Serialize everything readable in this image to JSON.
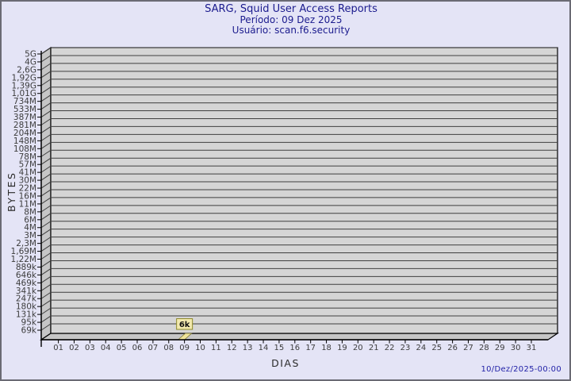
{
  "page": {
    "background": "#e4e4f6",
    "border_color": "#6a6a74"
  },
  "header": {
    "title": "SARG, Squid User Access Reports",
    "period": "Período: 09 Dez 2025",
    "user": "Usuário: scan.f6.security",
    "text_color": "#1b1b8e"
  },
  "chart_data": {
    "type": "bar",
    "title": "SARG, Squid User Access Reports",
    "xlabel": "DIAS",
    "ylabel": "BYTES",
    "categories": [
      "01",
      "02",
      "03",
      "04",
      "05",
      "06",
      "07",
      "08",
      "09",
      "10",
      "11",
      "12",
      "13",
      "14",
      "15",
      "16",
      "17",
      "18",
      "19",
      "20",
      "21",
      "22",
      "23",
      "24",
      "25",
      "26",
      "27",
      "28",
      "29",
      "30",
      "31"
    ],
    "y_tick_labels_top_to_bottom": [
      "5G",
      "4G",
      "2,6G",
      "1,92G",
      "1,39G",
      "1,01G",
      "734M",
      "533M",
      "387M",
      "281M",
      "204M",
      "148M",
      "108M",
      "78M",
      "57M",
      "41M",
      "30M",
      "22M",
      "16M",
      "11M",
      "8M",
      "6M",
      "4M",
      "3M",
      "2,3M",
      "1,69M",
      "1,22M",
      "889k",
      "646k",
      "469k",
      "341k",
      "247k",
      "180k",
      "131k",
      "95k",
      "69k"
    ],
    "y_axis_top": "5G",
    "y_axis_bottom": "69k",
    "grid": true,
    "legend": false,
    "series": [
      {
        "name": "bytes_per_day",
        "points": [
          {
            "x": "09",
            "value_bytes": 6000,
            "label": "6k"
          }
        ]
      }
    ],
    "colors": {
      "plot_bg": "#d5d5d5",
      "wall": "#c6c6c6",
      "grid_line": "#3f3f3f",
      "axis_line": "#000000",
      "tick_label": "#3d3d3d",
      "bar_fill": "#efe49a",
      "bar_border": "#7a7430",
      "annotation_bg": "#f2e9ae",
      "annotation_border": "#8f8a2a",
      "annotation_text": "#111111"
    }
  },
  "footer": {
    "timestamp": "10/Dez/2025-00:00",
    "color": "#2222a8"
  }
}
